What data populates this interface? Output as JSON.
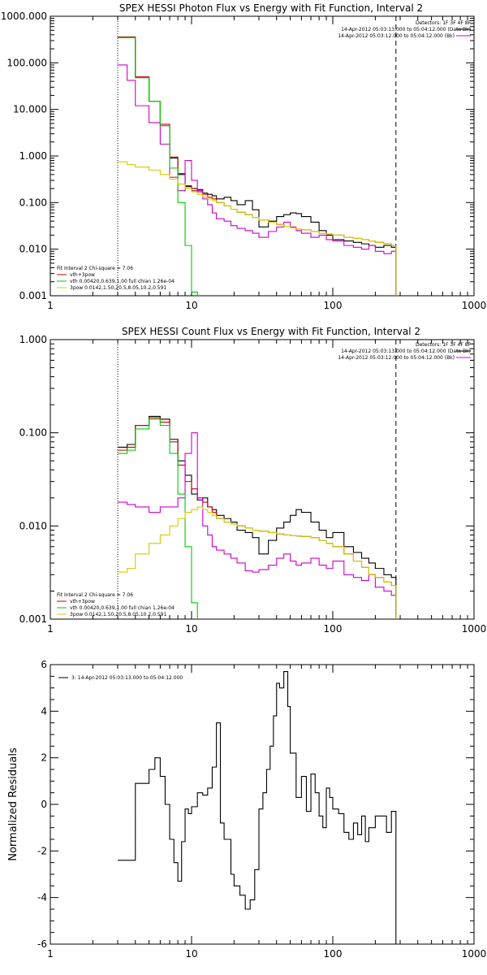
{
  "chart_data": [
    {
      "type": "line",
      "title": "SPEX HESSI Photon Flux vs Energy with Fit Function, Interval 2",
      "xlabel": "",
      "ylabel": "",
      "x_scale": "log",
      "y_scale": "log",
      "xlim": [
        1,
        1000
      ],
      "ylim": [
        0.001,
        1000
      ],
      "x_ticks": [
        "1",
        "10",
        "100",
        "1000"
      ],
      "y_ticks": [
        "0.001",
        "0.010",
        "0.100",
        "1.000",
        "10.000",
        "100.000",
        "1000.000"
      ],
      "vlines": [
        {
          "x": 3,
          "style": "dotted"
        },
        {
          "x": 280,
          "style": "dashed"
        }
      ],
      "header_lines": [
        "Detectors: 1F 3F 4F 8F",
        "14-Apr-2012 05:03:13.000 to 05:04:12.000 (Data-Bk)",
        "14-Apr-2012 05:03:12.000 to 05:04:12.000 (Bk)"
      ],
      "legend_title": "Fit Interval 2   Chi-square = 7.06",
      "legend": [
        {
          "label": "vth+3pow",
          "color": "#cc0000"
        },
        {
          "label": "vth 0.00420,0.639,1.00   full chian 1.26e-04",
          "color": "#00cc00"
        },
        {
          "label": "3pow 0.0142,1.50,20.5,8.05,10.2,0.591",
          "color": "#cccc00"
        }
      ],
      "series": [
        {
          "name": "Data-Bk",
          "color": "#000000",
          "x": [
            3,
            3.5,
            4,
            5,
            6,
            7,
            8,
            9,
            10,
            11,
            12,
            13,
            14,
            15,
            17,
            19,
            21,
            24,
            27,
            30,
            35,
            40,
            45,
            50,
            55,
            60,
            70,
            80,
            90,
            100,
            120,
            140,
            160,
            180,
            200,
            230,
            260,
            280
          ],
          "y": [
            350,
            350,
            48,
            15,
            4.5,
            0.9,
            0.4,
            0.22,
            0.2,
            0.19,
            0.16,
            0.15,
            0.14,
            0.12,
            0.13,
            0.11,
            0.09,
            0.11,
            0.07,
            0.03,
            0.04,
            0.05,
            0.055,
            0.06,
            0.058,
            0.05,
            0.038,
            0.025,
            0.02,
            0.016,
            0.015,
            0.014,
            0.013,
            0.012,
            0.011,
            0.012,
            0.011,
            0.001
          ]
        },
        {
          "name": "vth+3pow",
          "color": "#cc0000",
          "x": [
            3,
            3.5,
            4,
            5,
            6,
            7,
            8,
            9,
            10,
            11,
            12,
            13,
            14,
            15,
            17,
            19,
            21,
            24,
            27,
            30,
            35,
            40,
            45,
            50,
            55,
            60,
            70,
            80,
            90,
            100,
            120,
            140,
            160,
            180,
            200,
            230,
            260,
            280
          ],
          "y": [
            360,
            360,
            50,
            15,
            4.8,
            0.95,
            0.42,
            0.23,
            0.18,
            0.17,
            0.15,
            0.13,
            0.12,
            0.1,
            0.085,
            0.072,
            0.062,
            0.055,
            0.048,
            0.042,
            0.038,
            0.034,
            0.031,
            0.029,
            0.027,
            0.026,
            0.024,
            0.022,
            0.021,
            0.02,
            0.018,
            0.017,
            0.016,
            0.015,
            0.014,
            0.013,
            0.012,
            0.001
          ]
        },
        {
          "name": "Background",
          "color": "#cc00cc",
          "x": [
            3,
            3.5,
            4,
            5,
            6,
            7,
            8,
            9,
            10,
            11,
            12,
            13,
            14,
            15,
            17,
            19,
            21,
            24,
            27,
            30,
            35,
            40,
            45,
            50,
            55,
            60,
            70,
            80,
            90,
            100,
            120,
            140,
            160,
            180,
            200,
            230,
            260,
            280
          ],
          "y": [
            90,
            42,
            12,
            5.2,
            1.8,
            0.35,
            0.18,
            0.8,
            0.3,
            0.18,
            0.12,
            0.09,
            0.06,
            0.045,
            0.04,
            0.032,
            0.028,
            0.025,
            0.022,
            0.018,
            0.024,
            0.03,
            0.038,
            0.03,
            0.025,
            0.022,
            0.018,
            0.02,
            0.016,
            0.015,
            0.012,
            0.011,
            0.01,
            0.012,
            0.009,
            0.008,
            0.009,
            0.001
          ]
        },
        {
          "name": "vth",
          "color": "#00cc00",
          "x": [
            3,
            3.5,
            4,
            5,
            6,
            7,
            8,
            9,
            10,
            11
          ],
          "y": [
            350,
            350,
            48,
            15,
            4.5,
            0.55,
            0.1,
            0.012,
            0.0012,
            0.0012
          ]
        },
        {
          "name": "3pow",
          "color": "#cccc00",
          "x": [
            3,
            3.5,
            4,
            5,
            6,
            7,
            8,
            9,
            10,
            11,
            12,
            13,
            14,
            15,
            17,
            19,
            21,
            24,
            27,
            30,
            35,
            40,
            45,
            50,
            55,
            60,
            70,
            80,
            90,
            100,
            120,
            140,
            160,
            180,
            200,
            230,
            260,
            280
          ],
          "y": [
            0.75,
            0.65,
            0.58,
            0.5,
            0.4,
            0.32,
            0.25,
            0.2,
            0.17,
            0.15,
            0.13,
            0.12,
            0.11,
            0.1,
            0.085,
            0.072,
            0.062,
            0.055,
            0.048,
            0.042,
            0.038,
            0.034,
            0.031,
            0.029,
            0.027,
            0.026,
            0.024,
            0.022,
            0.021,
            0.02,
            0.018,
            0.017,
            0.016,
            0.015,
            0.014,
            0.013,
            0.012,
            0.001
          ]
        }
      ]
    },
    {
      "type": "line",
      "title": "SPEX HESSI Count Flux vs Energy with Fit Function, Interval 2",
      "xlabel": "",
      "ylabel": "",
      "x_scale": "log",
      "y_scale": "log",
      "xlim": [
        1,
        1000
      ],
      "ylim": [
        0.001,
        1
      ],
      "x_ticks": [
        "1",
        "10",
        "100",
        "1000"
      ],
      "y_ticks": [
        "0.001",
        "0.010",
        "0.100",
        "1.000"
      ],
      "vlines": [
        {
          "x": 3,
          "style": "dotted"
        },
        {
          "x": 280,
          "style": "dashed"
        }
      ],
      "header_lines": [
        "Detectors: 1F 3F 4F 8F",
        "14-Apr-2012 05:03:13.000 to 05:04:12.000 (Data-Bk)",
        "14-Apr-2012 05:03:12.000 to 05:04:12.000 (Bk)"
      ],
      "legend_title": "Fit Interval 2   Chi-square = 7.06",
      "legend": [
        {
          "label": "vth+3pow",
          "color": "#cc0000"
        },
        {
          "label": "vth 0.00420,0.639,1.00   full chian 1.26e-04",
          "color": "#00cc00"
        },
        {
          "label": "3pow 0.0142,1.50,20.5,8.05,10.2,0.591",
          "color": "#cccc00"
        }
      ],
      "series": [
        {
          "name": "Data-Bk",
          "color": "#000000",
          "x": [
            3,
            3.5,
            4,
            5,
            6,
            7,
            8,
            9,
            10,
            11,
            12,
            13,
            14,
            15,
            17,
            19,
            21,
            24,
            27,
            30,
            35,
            40,
            45,
            50,
            55,
            60,
            70,
            80,
            90,
            100,
            120,
            140,
            160,
            180,
            200,
            230,
            260,
            280
          ],
          "y": [
            0.07,
            0.075,
            0.12,
            0.15,
            0.14,
            0.085,
            0.05,
            0.035,
            0.022,
            0.019,
            0.02,
            0.016,
            0.015,
            0.013,
            0.012,
            0.011,
            0.009,
            0.0085,
            0.0075,
            0.005,
            0.007,
            0.0095,
            0.011,
            0.013,
            0.015,
            0.014,
            0.011,
            0.009,
            0.0075,
            0.0085,
            0.006,
            0.0052,
            0.0045,
            0.004,
            0.0035,
            0.003,
            0.0028,
            0.002
          ]
        },
        {
          "name": "vth+3pow",
          "color": "#cc0000",
          "x": [
            3,
            3.5,
            4,
            5,
            6,
            7,
            8,
            9,
            10,
            11,
            12,
            13,
            14,
            15,
            17,
            19,
            21,
            24,
            27,
            30,
            35,
            40,
            45,
            50,
            55,
            60,
            70,
            80,
            90,
            100,
            120,
            140,
            160,
            180,
            200,
            230,
            260,
            280
          ],
          "y": [
            0.065,
            0.07,
            0.12,
            0.145,
            0.13,
            0.08,
            0.045,
            0.03,
            0.025,
            0.02,
            0.018,
            0.016,
            0.014,
            0.012,
            0.011,
            0.0105,
            0.01,
            0.0095,
            0.009,
            0.0088,
            0.0085,
            0.0082,
            0.008,
            0.0079,
            0.0078,
            0.0077,
            0.0075,
            0.007,
            0.0065,
            0.006,
            0.005,
            0.0042,
            0.0036,
            0.003,
            0.0028,
            0.0025,
            0.0023,
            0.002
          ]
        },
        {
          "name": "Background",
          "color": "#cc00cc",
          "x": [
            3,
            3.5,
            4,
            5,
            6,
            7,
            8,
            9,
            10,
            11,
            12,
            13,
            14,
            15,
            17,
            19,
            21,
            24,
            27,
            30,
            35,
            40,
            45,
            50,
            55,
            60,
            70,
            80,
            90,
            100,
            120,
            140,
            160,
            180,
            200,
            230,
            260,
            280
          ],
          "y": [
            0.018,
            0.017,
            0.016,
            0.014,
            0.016,
            0.016,
            0.02,
            0.06,
            0.1,
            0.02,
            0.01,
            0.008,
            0.006,
            0.0055,
            0.005,
            0.0045,
            0.004,
            0.0033,
            0.0032,
            0.0034,
            0.0038,
            0.0045,
            0.005,
            0.0042,
            0.0038,
            0.004,
            0.0045,
            0.0038,
            0.0035,
            0.0042,
            0.003,
            0.0028,
            0.0026,
            0.003,
            0.0022,
            0.002,
            0.0018,
            0.0015
          ]
        },
        {
          "name": "vth",
          "color": "#00cc00",
          "x": [
            3,
            3.5,
            4,
            5,
            6,
            7,
            8,
            9,
            10,
            11
          ],
          "y": [
            0.06,
            0.065,
            0.11,
            0.14,
            0.12,
            0.06,
            0.022,
            0.006,
            0.0015,
            0.001
          ]
        },
        {
          "name": "3pow",
          "color": "#cccc00",
          "x": [
            3,
            3.5,
            4,
            5,
            6,
            7,
            8,
            9,
            10,
            11,
            12,
            13,
            14,
            15,
            17,
            19,
            21,
            24,
            27,
            30,
            35,
            40,
            45,
            50,
            55,
            60,
            70,
            80,
            90,
            100,
            120,
            140,
            160,
            180,
            200,
            230,
            260,
            280
          ],
          "y": [
            0.0032,
            0.0035,
            0.005,
            0.0065,
            0.008,
            0.01,
            0.012,
            0.014,
            0.015,
            0.016,
            0.015,
            0.014,
            0.013,
            0.012,
            0.011,
            0.0105,
            0.01,
            0.0095,
            0.009,
            0.0088,
            0.0085,
            0.0082,
            0.008,
            0.0079,
            0.0078,
            0.0077,
            0.0075,
            0.007,
            0.0065,
            0.006,
            0.005,
            0.0042,
            0.0036,
            0.003,
            0.0028,
            0.0025,
            0.0023,
            0.002
          ]
        }
      ]
    },
    {
      "type": "line",
      "title": "",
      "xlabel": "",
      "ylabel": "Normalized Residuals",
      "x_scale": "log",
      "y_scale": "linear",
      "xlim": [
        1,
        1000
      ],
      "ylim": [
        -6,
        6
      ],
      "x_ticks": [
        "1",
        "10",
        "100",
        "1000"
      ],
      "y_ticks": [
        "-6",
        "-4",
        "-2",
        "0",
        "2",
        "4",
        "6"
      ],
      "legend": [
        {
          "label": "3: 14-Apr-2012 05:03:13.000 to 05:04:12.000",
          "color": "#000000"
        }
      ],
      "series": [
        {
          "name": "3: 14-Apr-2012 05:03:13.000 to 05:04:12.000",
          "color": "#000000",
          "x": [
            3,
            3.5,
            4,
            4.5,
            5,
            5.5,
            6,
            6.5,
            7,
            7.5,
            8,
            8.5,
            9,
            9.5,
            10,
            11,
            12,
            13,
            14,
            15,
            16,
            17,
            18,
            19,
            20,
            22,
            24,
            26,
            28,
            30,
            32,
            34,
            36,
            38,
            40,
            42,
            45,
            48,
            50,
            55,
            60,
            65,
            70,
            75,
            80,
            85,
            90,
            95,
            100,
            110,
            120,
            130,
            140,
            150,
            160,
            170,
            180,
            200,
            220,
            240,
            260,
            280
          ],
          "y": [
            -2.4,
            -2.4,
            0.9,
            0.9,
            1.5,
            2.0,
            1.2,
            0,
            -1.5,
            -2.5,
            -3.3,
            -1.6,
            -0.2,
            -0.4,
            -0.1,
            0.5,
            0.4,
            0.7,
            1.6,
            3.5,
            -0.8,
            -1.5,
            -1.5,
            -3.0,
            -3.5,
            -3.9,
            -4.5,
            -4.1,
            -2.8,
            -0.2,
            0.5,
            1.5,
            2.5,
            3.8,
            5.2,
            5.0,
            5.7,
            4.2,
            2.2,
            0.3,
            1.2,
            -0.3,
            1.3,
            0.5,
            -0.5,
            -1.0,
            0.7,
            0.3,
            -0.2,
            -0.4,
            -1.2,
            -1.5,
            -0.8,
            -1.3,
            -0.5,
            -1.6,
            -1.0,
            -0.5,
            -0.5,
            -1.2,
            -0.3,
            -6
          ]
        }
      ]
    }
  ]
}
